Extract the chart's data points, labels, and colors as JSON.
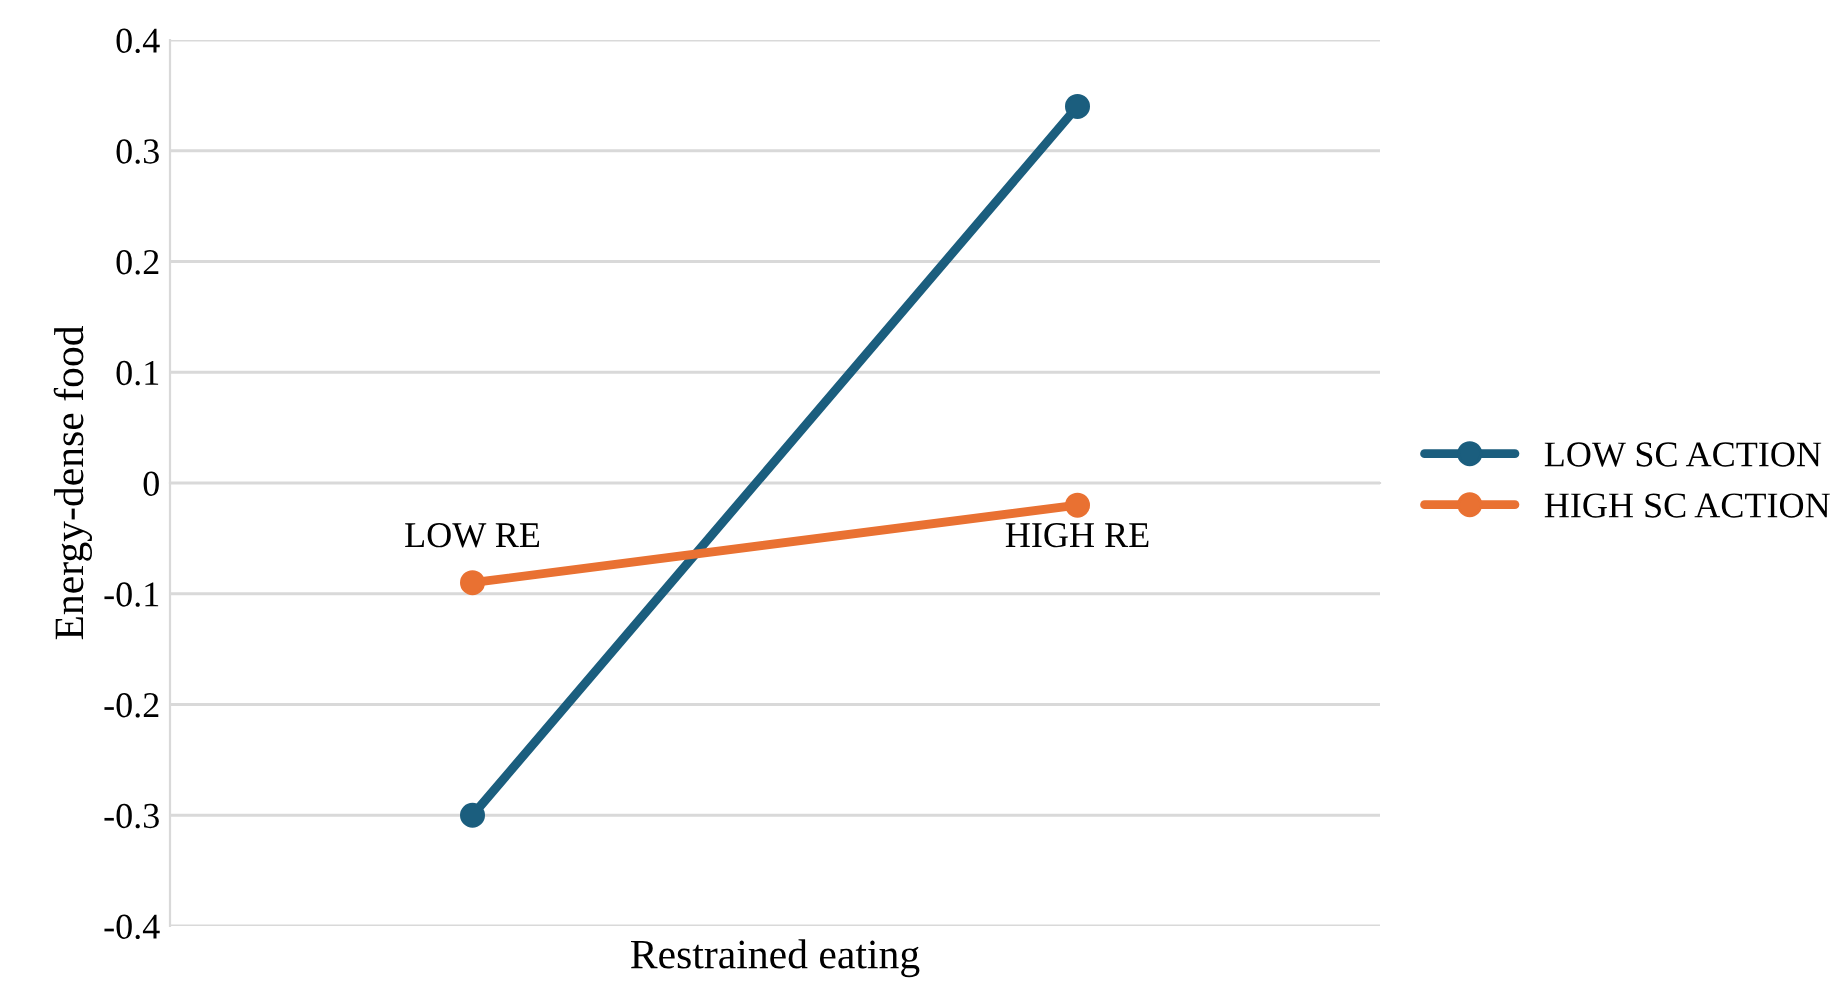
{
  "chart_data": {
    "type": "line",
    "xlabel": "Restrained eating",
    "ylabel": "Energy-dense food",
    "categories": [
      "LOW RE",
      "HIGH RE"
    ],
    "series": [
      {
        "name": "LOW SC ACTION",
        "color": "#1b5e7e",
        "values": [
          -0.3,
          0.34
        ]
      },
      {
        "name": "HIGH SC ACTION",
        "color": "#e97132",
        "values": [
          -0.09,
          -0.02
        ]
      }
    ],
    "ylim": [
      -0.4,
      0.4
    ],
    "yticks": [
      -0.4,
      -0.3,
      -0.2,
      -0.1,
      0,
      0.1,
      0.2,
      0.3,
      0.4
    ],
    "grid": "y",
    "legend": "right",
    "marker": "circle",
    "line_style": "solid"
  }
}
